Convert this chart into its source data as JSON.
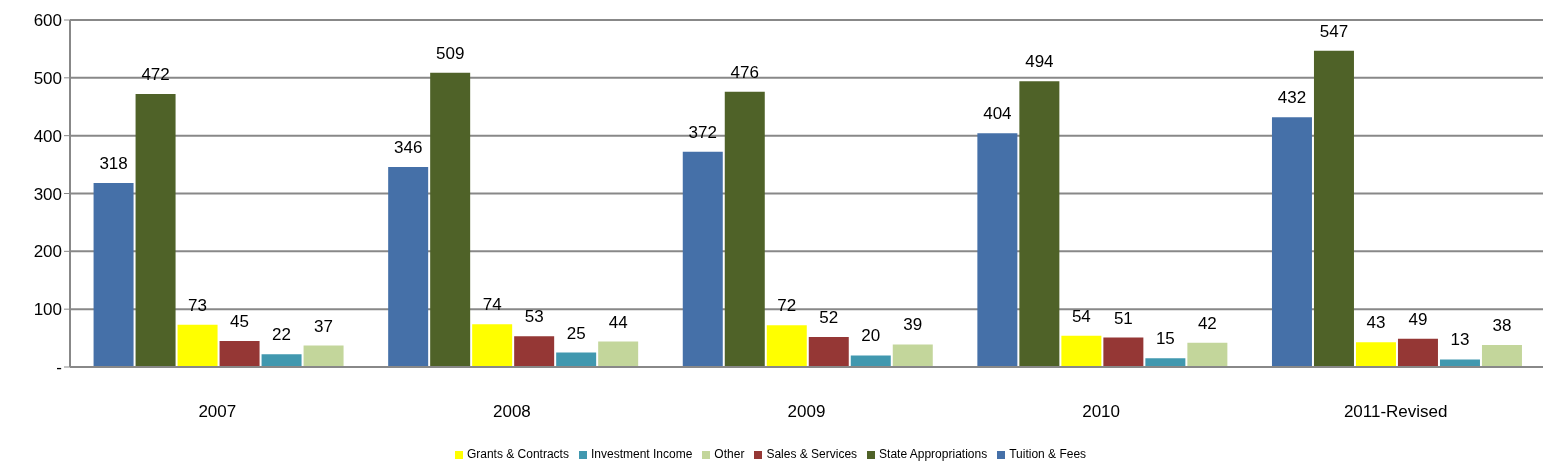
{
  "chart_data": {
    "type": "bar",
    "categories": [
      "2007",
      "2008",
      "2009",
      "2010",
      "2011-Revised"
    ],
    "series": [
      {
        "name": "Tuition & Fees",
        "color": "#4570a8",
        "values": [
          318,
          346,
          372,
          404,
          432
        ]
      },
      {
        "name": "State Appropriations",
        "color": "#4f6228",
        "values": [
          472,
          509,
          476,
          494,
          547
        ]
      },
      {
        "name": "Grants & Contracts",
        "color": "#ffff00",
        "values": [
          73,
          74,
          72,
          54,
          43
        ]
      },
      {
        "name": "Sales & Services",
        "color": "#953735",
        "values": [
          45,
          53,
          52,
          51,
          49
        ]
      },
      {
        "name": "Investment Income",
        "color": "#4198af",
        "values": [
          22,
          25,
          20,
          15,
          13
        ]
      },
      {
        "name": "Other",
        "color": "#c3d69b",
        "values": [
          37,
          44,
          39,
          42,
          38
        ]
      }
    ],
    "ylim": [
      0,
      600
    ],
    "yticks": [
      {
        "value": 0,
        "label": "-"
      },
      100,
      200,
      300,
      400,
      500,
      600
    ],
    "grid": "y",
    "legend": "bottom",
    "data_labels": true
  }
}
